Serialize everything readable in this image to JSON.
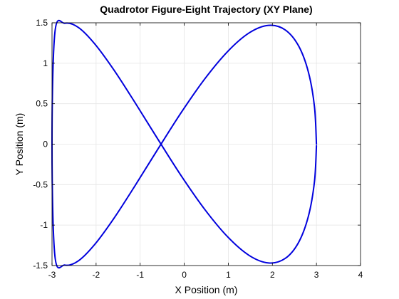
{
  "chart_data": {
    "type": "line",
    "title": "Quadrotor Figure-Eight Trajectory (XY Plane)",
    "xlabel": "X Position (m)",
    "ylabel": "Y Position (m)",
    "xlim": [
      -3,
      4
    ],
    "ylim": [
      -1.5,
      1.5
    ],
    "xticks": [
      "-3",
      "-2",
      "-1",
      "0",
      "1",
      "2",
      "3",
      "4"
    ],
    "yticks": [
      "-1.5",
      "-1",
      "-0.5",
      "0",
      "0.5",
      "1",
      "1.5"
    ],
    "grid": true,
    "legend": "none",
    "series": [
      {
        "color": "#0000dd",
        "x": [
          3.0,
          2.955,
          2.817,
          2.593,
          2.289,
          1.913,
          1.476,
          0.992,
          0.472,
          -0.063,
          -0.595,
          -1.11,
          -1.591,
          -2.026,
          -2.402,
          -2.708,
          -2.934,
          -3.0,
          -2.934,
          -2.708,
          -2.402,
          -2.026,
          -1.591,
          -1.11,
          -0.595,
          -0.063,
          0.472,
          0.992,
          1.476,
          1.913,
          2.289,
          2.593,
          2.817,
          2.955,
          3.0
        ],
        "y": [
          0.0,
          0.463,
          0.891,
          1.216,
          1.413,
          1.468,
          1.376,
          1.149,
          0.811,
          0.395,
          -0.059,
          -0.508,
          -0.913,
          -1.236,
          -1.442,
          -1.494,
          -1.383,
          0.0,
          1.383,
          1.494,
          1.442,
          1.236,
          0.913,
          0.508,
          0.059,
          -0.395,
          -0.811,
          -1.149,
          -1.376,
          -1.468,
          -1.413,
          -1.216,
          -0.891,
          -0.463,
          -0.02
        ]
      }
    ]
  }
}
